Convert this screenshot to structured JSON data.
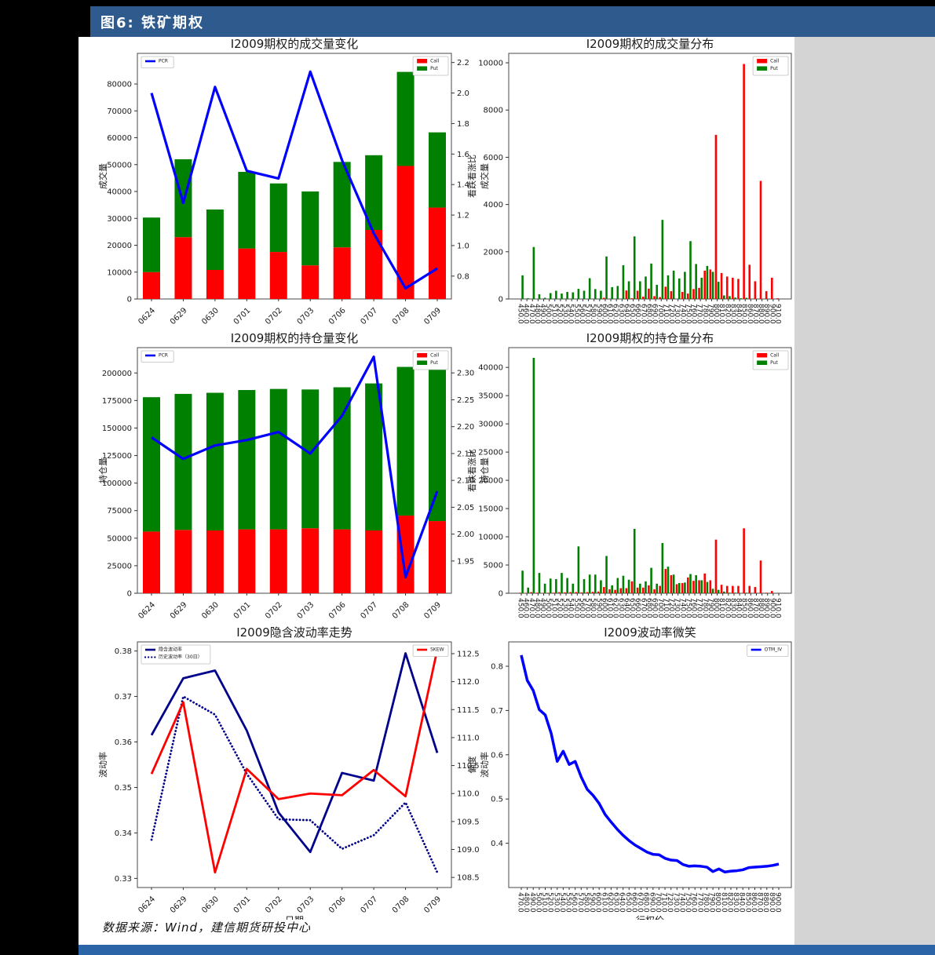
{
  "page": {
    "header_title": "图6: 铁矿期权",
    "source_text": "数据来源：Wind，建信期货研投中心",
    "colors": {
      "header_bg": "#2E5A8D",
      "footer_bg": "#2C64A8",
      "page_bg": "#000000",
      "panel_bg": "#ffffff",
      "right_margin_bg": "#d4d4d4",
      "call": "#ff0000",
      "put": "#008000",
      "pcr_line": "#0000ff",
      "navy_line": "#00008b",
      "skew_line": "#ff0000",
      "smile_line": "#0000ff"
    }
  },
  "chart_data": [
    {
      "id": "volume-change",
      "type": "stacked-bar-line",
      "title": "I2009期权的成交量变化",
      "ylabel_left": "成交量",
      "ylabel_right": "看跌看涨比",
      "categories": [
        "0624",
        "0629",
        "0630",
        "0701",
        "0702",
        "0703",
        "0706",
        "0707",
        "0708",
        "0709"
      ],
      "series": [
        {
          "name": "Call",
          "color": "#ff0000",
          "values": [
            10000,
            23000,
            10800,
            18800,
            17500,
            12500,
            19200,
            25700,
            49500,
            34000
          ]
        },
        {
          "name": "Put",
          "color": "#008000",
          "values": [
            20300,
            29000,
            22500,
            28500,
            25500,
            27500,
            31800,
            27800,
            35000,
            28000
          ]
        }
      ],
      "line_series": {
        "name": "PCR",
        "color": "#0000ff",
        "values": [
          2.0,
          1.28,
          2.04,
          1.49,
          1.44,
          2.14,
          1.56,
          1.08,
          0.72,
          0.85
        ]
      },
      "ylim_left": [
        0,
        91400
      ],
      "yticks_left": [
        0,
        10000,
        20000,
        30000,
        40000,
        50000,
        60000,
        70000,
        80000
      ],
      "ylim_right": [
        0.65,
        2.26
      ],
      "yticks_right": [
        0.8,
        1.0,
        1.2,
        1.4,
        1.6,
        1.8,
        2.0,
        2.2
      ],
      "legends": [
        {
          "pos": "upper-left",
          "entries": [
            {
              "label": "PCR",
              "type": "line",
              "color": "#0000ff"
            }
          ]
        },
        {
          "pos": "upper-right",
          "entries": [
            {
              "label": "Call",
              "type": "patch",
              "color": "#ff0000"
            },
            {
              "label": "Put",
              "type": "patch",
              "color": "#008000"
            }
          ]
        }
      ]
    },
    {
      "id": "volume-distribution",
      "type": "grouped-bar",
      "title": "I2009期权的成交量分布",
      "ylabel_left": "成交量",
      "strikes": [
        450,
        460,
        470,
        480,
        490,
        500,
        510,
        520,
        530,
        540,
        550,
        560,
        570,
        580,
        590,
        600,
        610,
        620,
        630,
        640,
        650,
        660,
        670,
        680,
        690,
        700,
        710,
        720,
        730,
        740,
        750,
        760,
        770,
        780,
        790,
        800,
        810,
        820,
        830,
        840,
        850,
        860,
        870,
        880,
        890,
        900,
        910
      ],
      "series": [
        {
          "name": "Call",
          "color": "#ff0000",
          "values": [
            0,
            0,
            0,
            0,
            0,
            0,
            0,
            0,
            0,
            0,
            0,
            0,
            0,
            0,
            0,
            50,
            0,
            0,
            0,
            360,
            30,
            350,
            100,
            440,
            120,
            80,
            520,
            330,
            0,
            300,
            230,
            420,
            470,
            1200,
            1250,
            6950,
            1100,
            950,
            900,
            850,
            9950,
            1450,
            750,
            5000,
            330,
            900,
            30
          ]
        },
        {
          "name": "Put",
          "color": "#008000",
          "values": [
            1000,
            30,
            2200,
            200,
            50,
            250,
            350,
            230,
            300,
            280,
            430,
            350,
            880,
            420,
            350,
            1800,
            500,
            550,
            1430,
            750,
            2650,
            750,
            950,
            1500,
            600,
            3350,
            1000,
            1200,
            870,
            1150,
            2450,
            1480,
            900,
            1400,
            1150,
            730,
            150,
            120,
            60,
            30,
            50,
            0,
            0,
            0,
            0,
            0,
            0
          ]
        }
      ],
      "ylim_left": [
        0,
        10400
      ],
      "yticks_left": [
        0,
        2000,
        4000,
        6000,
        8000,
        10000
      ],
      "legends": [
        {
          "pos": "upper-right",
          "entries": [
            {
              "label": "Call",
              "type": "patch",
              "color": "#ff0000"
            },
            {
              "label": "Put",
              "type": "patch",
              "color": "#008000"
            }
          ]
        }
      ]
    },
    {
      "id": "oi-change",
      "type": "stacked-bar-line",
      "title": "I2009期权的持仓量变化",
      "ylabel_left": "持仓量",
      "ylabel_right": "看跌看涨比",
      "categories": [
        "0624",
        "0629",
        "0630",
        "0701",
        "0702",
        "0703",
        "0706",
        "0707",
        "0708",
        "0709"
      ],
      "series": [
        {
          "name": "Call",
          "color": "#ff0000",
          "values": [
            56000,
            57500,
            57000,
            58000,
            58000,
            59000,
            58000,
            57000,
            70500,
            65500
          ]
        },
        {
          "name": "Put",
          "color": "#008000",
          "values": [
            122000,
            123500,
            125000,
            126500,
            127500,
            126000,
            129000,
            133500,
            135000,
            137500
          ]
        }
      ],
      "line_series": {
        "name": "PCR",
        "color": "#0000ff",
        "values": [
          2.18,
          2.14,
          2.165,
          2.175,
          2.19,
          2.15,
          2.22,
          2.33,
          1.92,
          2.08
        ]
      },
      "ylim_left": [
        0,
        223000
      ],
      "yticks_left": [
        0,
        25000,
        50000,
        75000,
        100000,
        125000,
        150000,
        175000,
        200000
      ],
      "ylim_right": [
        1.89,
        2.347
      ],
      "yticks_right": [
        1.95,
        2.0,
        2.05,
        2.1,
        2.15,
        2.2,
        2.25,
        2.3
      ],
      "legends": [
        {
          "pos": "upper-left",
          "entries": [
            {
              "label": "PCR",
              "type": "line",
              "color": "#0000ff"
            }
          ]
        },
        {
          "pos": "upper-right",
          "entries": [
            {
              "label": "Call",
              "type": "patch",
              "color": "#ff0000"
            },
            {
              "label": "Put",
              "type": "patch",
              "color": "#008000"
            }
          ]
        }
      ]
    },
    {
      "id": "oi-distribution",
      "type": "grouped-bar",
      "title": "I2009期权的持仓量分布",
      "ylabel_left": "持仓量",
      "strikes": [
        450,
        460,
        470,
        480,
        490,
        500,
        510,
        520,
        530,
        540,
        550,
        560,
        570,
        580,
        590,
        600,
        610,
        620,
        630,
        640,
        650,
        660,
        670,
        680,
        690,
        700,
        710,
        720,
        730,
        740,
        750,
        760,
        770,
        780,
        790,
        800,
        810,
        820,
        830,
        840,
        850,
        860,
        870,
        880,
        890,
        900,
        910
      ],
      "series": [
        {
          "name": "Call",
          "color": "#ff0000",
          "values": [
            100,
            50,
            200,
            100,
            50,
            100,
            100,
            200,
            150,
            200,
            200,
            150,
            200,
            250,
            300,
            1100,
            700,
            600,
            900,
            900,
            2100,
            1000,
            1000,
            1400,
            700,
            1300,
            4300,
            3200,
            1600,
            1800,
            2800,
            2200,
            2300,
            3500,
            2300,
            9500,
            1500,
            1300,
            1300,
            1300,
            11500,
            1300,
            1100,
            5800,
            100,
            400,
            0
          ]
        },
        {
          "name": "Put",
          "color": "#008000",
          "values": [
            4000,
            1000,
            41700,
            3600,
            1700,
            2600,
            2500,
            3600,
            2700,
            1700,
            8300,
            2500,
            3300,
            3300,
            2300,
            6600,
            1400,
            2700,
            3100,
            2400,
            11400,
            1700,
            2100,
            4500,
            1700,
            8900,
            4700,
            3300,
            1800,
            1900,
            3400,
            3200,
            2300,
            2000,
            800,
            600,
            300,
            100,
            100,
            50,
            100,
            0,
            0,
            0,
            0,
            0,
            0
          ]
        }
      ],
      "ylim_left": [
        0,
        43500
      ],
      "yticks_left": [
        0,
        5000,
        10000,
        15000,
        20000,
        25000,
        30000,
        35000,
        40000
      ],
      "legends": [
        {
          "pos": "upper-right",
          "entries": [
            {
              "label": "Call",
              "type": "patch",
              "color": "#ff0000"
            },
            {
              "label": "Put",
              "type": "patch",
              "color": "#008000"
            }
          ]
        }
      ]
    },
    {
      "id": "iv-trend",
      "type": "multi-line",
      "title": "I2009隐含波动率走势",
      "xlabel": "日期",
      "ylabel_left": "波动率",
      "ylabel_right": "偏度",
      "categories": [
        "0624",
        "0629",
        "0630",
        "0701",
        "0702",
        "0703",
        "0706",
        "0707",
        "0708",
        "0709"
      ],
      "series": [
        {
          "name": "隐含波动率",
          "color": "#00008b",
          "style": "solid",
          "axis": "left",
          "values": [
            0.3615,
            0.374,
            0.3757,
            0.3625,
            0.3445,
            0.3358,
            0.3532,
            0.3515,
            0.3795,
            0.3576
          ]
        },
        {
          "name": "历史波动率（30日）",
          "color": "#00008b",
          "style": "dotted",
          "axis": "left",
          "values": [
            0.3385,
            0.37,
            0.366,
            0.353,
            0.343,
            0.3428,
            0.3365,
            0.3395,
            0.3467,
            0.3313
          ]
        },
        {
          "name": "SKEW",
          "color": "#ff0000",
          "style": "solid",
          "axis": "right",
          "values": [
            110.35,
            111.63,
            108.59,
            110.44,
            109.9,
            110.0,
            109.97,
            110.42,
            109.95,
            112.57
          ]
        }
      ],
      "ylim_left": [
        0.328,
        0.382
      ],
      "yticks_left": [
        0.33,
        0.34,
        0.35,
        0.36,
        0.37,
        0.38
      ],
      "ylim_right": [
        108.32,
        112.71
      ],
      "yticks_right": [
        108.5,
        109.0,
        109.5,
        110.0,
        110.5,
        111.0,
        111.5,
        112.0,
        112.5
      ],
      "legends": [
        {
          "pos": "upper-left",
          "entries": [
            {
              "label": "隐含波动率",
              "type": "line",
              "color": "#00008b"
            },
            {
              "label": "历史波动率（30日）",
              "type": "dotted",
              "color": "#00008b"
            }
          ]
        },
        {
          "pos": "upper-right",
          "entries": [
            {
              "label": "SKEW",
              "type": "line",
              "color": "#ff0000"
            }
          ]
        }
      ]
    },
    {
      "id": "vol-smile",
      "type": "line",
      "title": "I2009波动率微笑",
      "xlabel": "行权价",
      "ylabel_left": "波动率",
      "strikes": [
        470,
        480,
        490,
        500,
        510,
        520,
        530,
        540,
        550,
        560,
        570,
        580,
        590,
        600,
        610,
        620,
        630,
        640,
        650,
        660,
        670,
        680,
        690,
        700,
        710,
        720,
        730,
        740,
        750,
        760,
        770,
        780,
        790,
        800,
        810,
        820,
        830,
        840,
        850,
        860,
        870,
        880,
        890,
        900
      ],
      "series": [
        {
          "name": "OTM_IV",
          "color": "#0000ff",
          "values": [
            0.825,
            0.768,
            0.745,
            0.702,
            0.69,
            0.648,
            0.585,
            0.608,
            0.578,
            0.585,
            0.55,
            0.522,
            0.508,
            0.49,
            0.465,
            0.448,
            0.432,
            0.418,
            0.406,
            0.396,
            0.388,
            0.38,
            0.375,
            0.374,
            0.366,
            0.362,
            0.361,
            0.352,
            0.348,
            0.349,
            0.348,
            0.346,
            0.336,
            0.342,
            0.335,
            0.337,
            0.338,
            0.34,
            0.345,
            0.346,
            0.347,
            0.348,
            0.35,
            0.353
          ]
        }
      ],
      "ylim_left": [
        0.3,
        0.855
      ],
      "yticks_left": [
        0.4,
        0.5,
        0.6,
        0.7,
        0.8
      ],
      "legends": [
        {
          "pos": "upper-right",
          "entries": [
            {
              "label": "OTM_IV",
              "type": "line",
              "color": "#0000ff"
            }
          ]
        }
      ]
    }
  ]
}
